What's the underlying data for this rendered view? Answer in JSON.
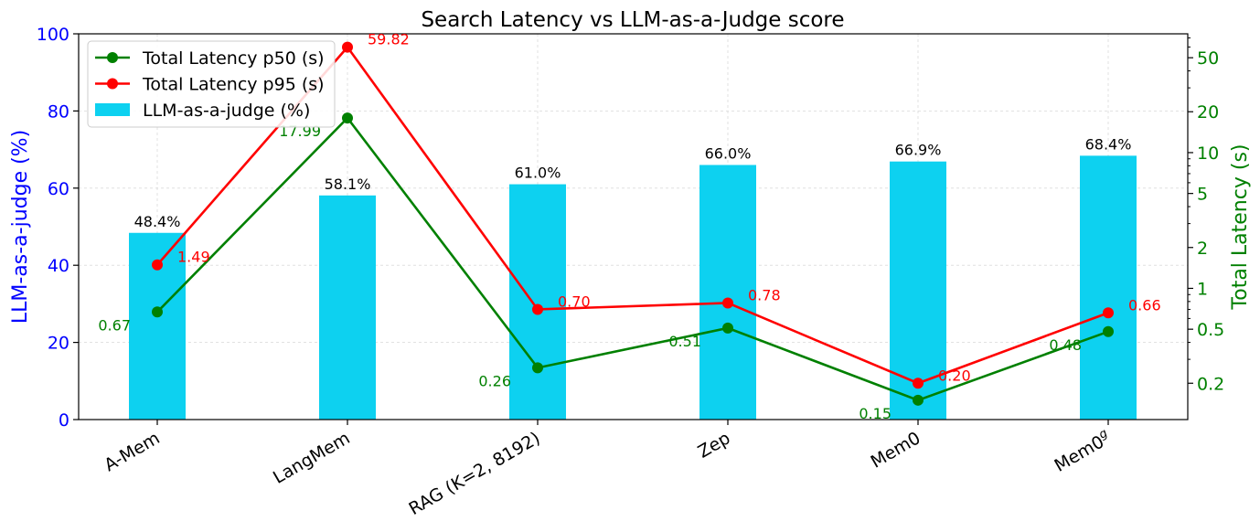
{
  "chart_data": {
    "type": "bar",
    "title": "Search Latency vs LLM-as-a-Judge score",
    "categories": [
      "A-Mem",
      "LangMem",
      "RAG (K=2, 8192)",
      "Zep",
      "Mem0",
      "Mem0"
    ],
    "category_superscripts": [
      "",
      "",
      "",
      "",
      "",
      "g"
    ],
    "ylabel_left": "LLM-as-a-judge (%)",
    "ylabel_right": "Total Latency (s)",
    "ylim_left": [
      0,
      100
    ],
    "ylim_right": [
      0.108,
      75
    ],
    "yscale_right": "log",
    "left_ticks": [
      0,
      20,
      40,
      60,
      80,
      100
    ],
    "right_ticks": [
      0.2,
      0.5,
      1,
      2,
      5,
      10,
      20,
      50
    ],
    "grid": true,
    "legend_position": "upper-left",
    "series": [
      {
        "name": "LLM-as-a-judge (%)",
        "kind": "bar",
        "axis": "left",
        "color": "#0dd1f0",
        "values": [
          48.4,
          58.1,
          61.0,
          66.0,
          66.9,
          68.4
        ],
        "labels": [
          "48.4%",
          "58.1%",
          "61.0%",
          "66.0%",
          "66.9%",
          "68.4%"
        ]
      },
      {
        "name": "Total Latency p50 (s)",
        "kind": "line",
        "axis": "right",
        "color": "#008000",
        "values": [
          0.67,
          17.99,
          0.26,
          0.51,
          0.15,
          0.48
        ],
        "labels": [
          "0.67",
          "17.99",
          "0.26",
          "0.51",
          "0.15",
          "0.48"
        ]
      },
      {
        "name": "Total Latency p95 (s)",
        "kind": "line",
        "axis": "right",
        "color": "#ff0000",
        "values": [
          1.49,
          59.82,
          0.7,
          0.78,
          0.2,
          0.66
        ],
        "labels": [
          "1.49",
          "59.82",
          "0.70",
          "0.78",
          "0.20",
          "0.66"
        ]
      }
    ],
    "colors": {
      "left_axis": "#0000ff",
      "right_axis": "#008000",
      "black_label": "#000000"
    }
  }
}
